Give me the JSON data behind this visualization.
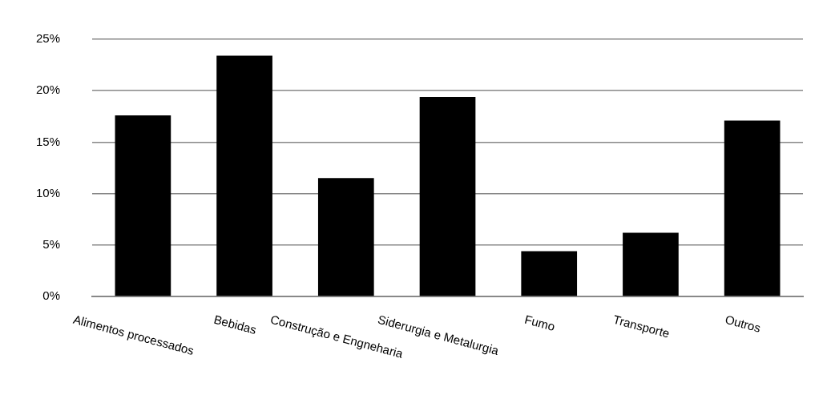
{
  "chart_data": {
    "type": "bar",
    "categories": [
      "Alimentos processados",
      "Bebidas",
      "Construção e Engneharia",
      "Siderurgia e Metalurgia",
      "Fumo",
      "Transporte",
      "Outros"
    ],
    "values": [
      17.6,
      23.4,
      11.5,
      19.4,
      4.4,
      6.2,
      17.1
    ],
    "color": "#000000",
    "ylim": [
      0,
      25
    ],
    "yticks": [
      {
        "value": 0,
        "label": "0%"
      },
      {
        "value": 5,
        "label": "5%"
      },
      {
        "value": 10,
        "label": "10%"
      },
      {
        "value": 15,
        "label": "15%"
      },
      {
        "value": 20,
        "label": "20%"
      },
      {
        "value": 25,
        "label": "25%"
      }
    ],
    "grid": "y",
    "legend": false
  }
}
